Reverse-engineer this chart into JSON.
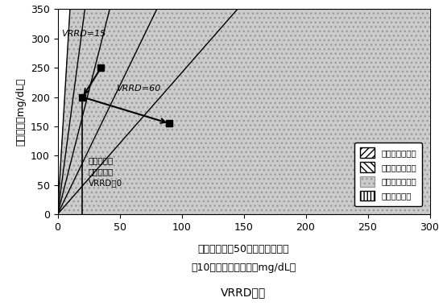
{
  "title": "VRRDの例",
  "xlabel_line1": "低範囲変動、50パーセンタイル",
  "xlabel_line2": "－10パーセンタイル（mg/dL）",
  "ylabel": "メジアン（mg/dL）",
  "xlim": [
    0,
    300
  ],
  "ylim": [
    0,
    350
  ],
  "xticks": [
    0,
    50,
    100,
    150,
    200,
    250,
    300
  ],
  "yticks": [
    0,
    50,
    100,
    150,
    200,
    250,
    300,
    350
  ],
  "legend_labels": [
    "低血糖リスク高",
    "低血糖リスク中",
    "低血糖リスク低",
    "ターゲット内"
  ],
  "vrrd15_label": "VRRD=15",
  "vrrd60_label": "VRRD=60",
  "negative_label": "負であり、\nしたがって\nVRRD＝0",
  "point1": [
    20,
    200
  ],
  "point2": [
    35,
    250
  ],
  "point3": [
    90,
    155
  ],
  "bg_color": "#ffffff",
  "boundary_x_at_y350": [
    10,
    22,
    42,
    80,
    145
  ]
}
